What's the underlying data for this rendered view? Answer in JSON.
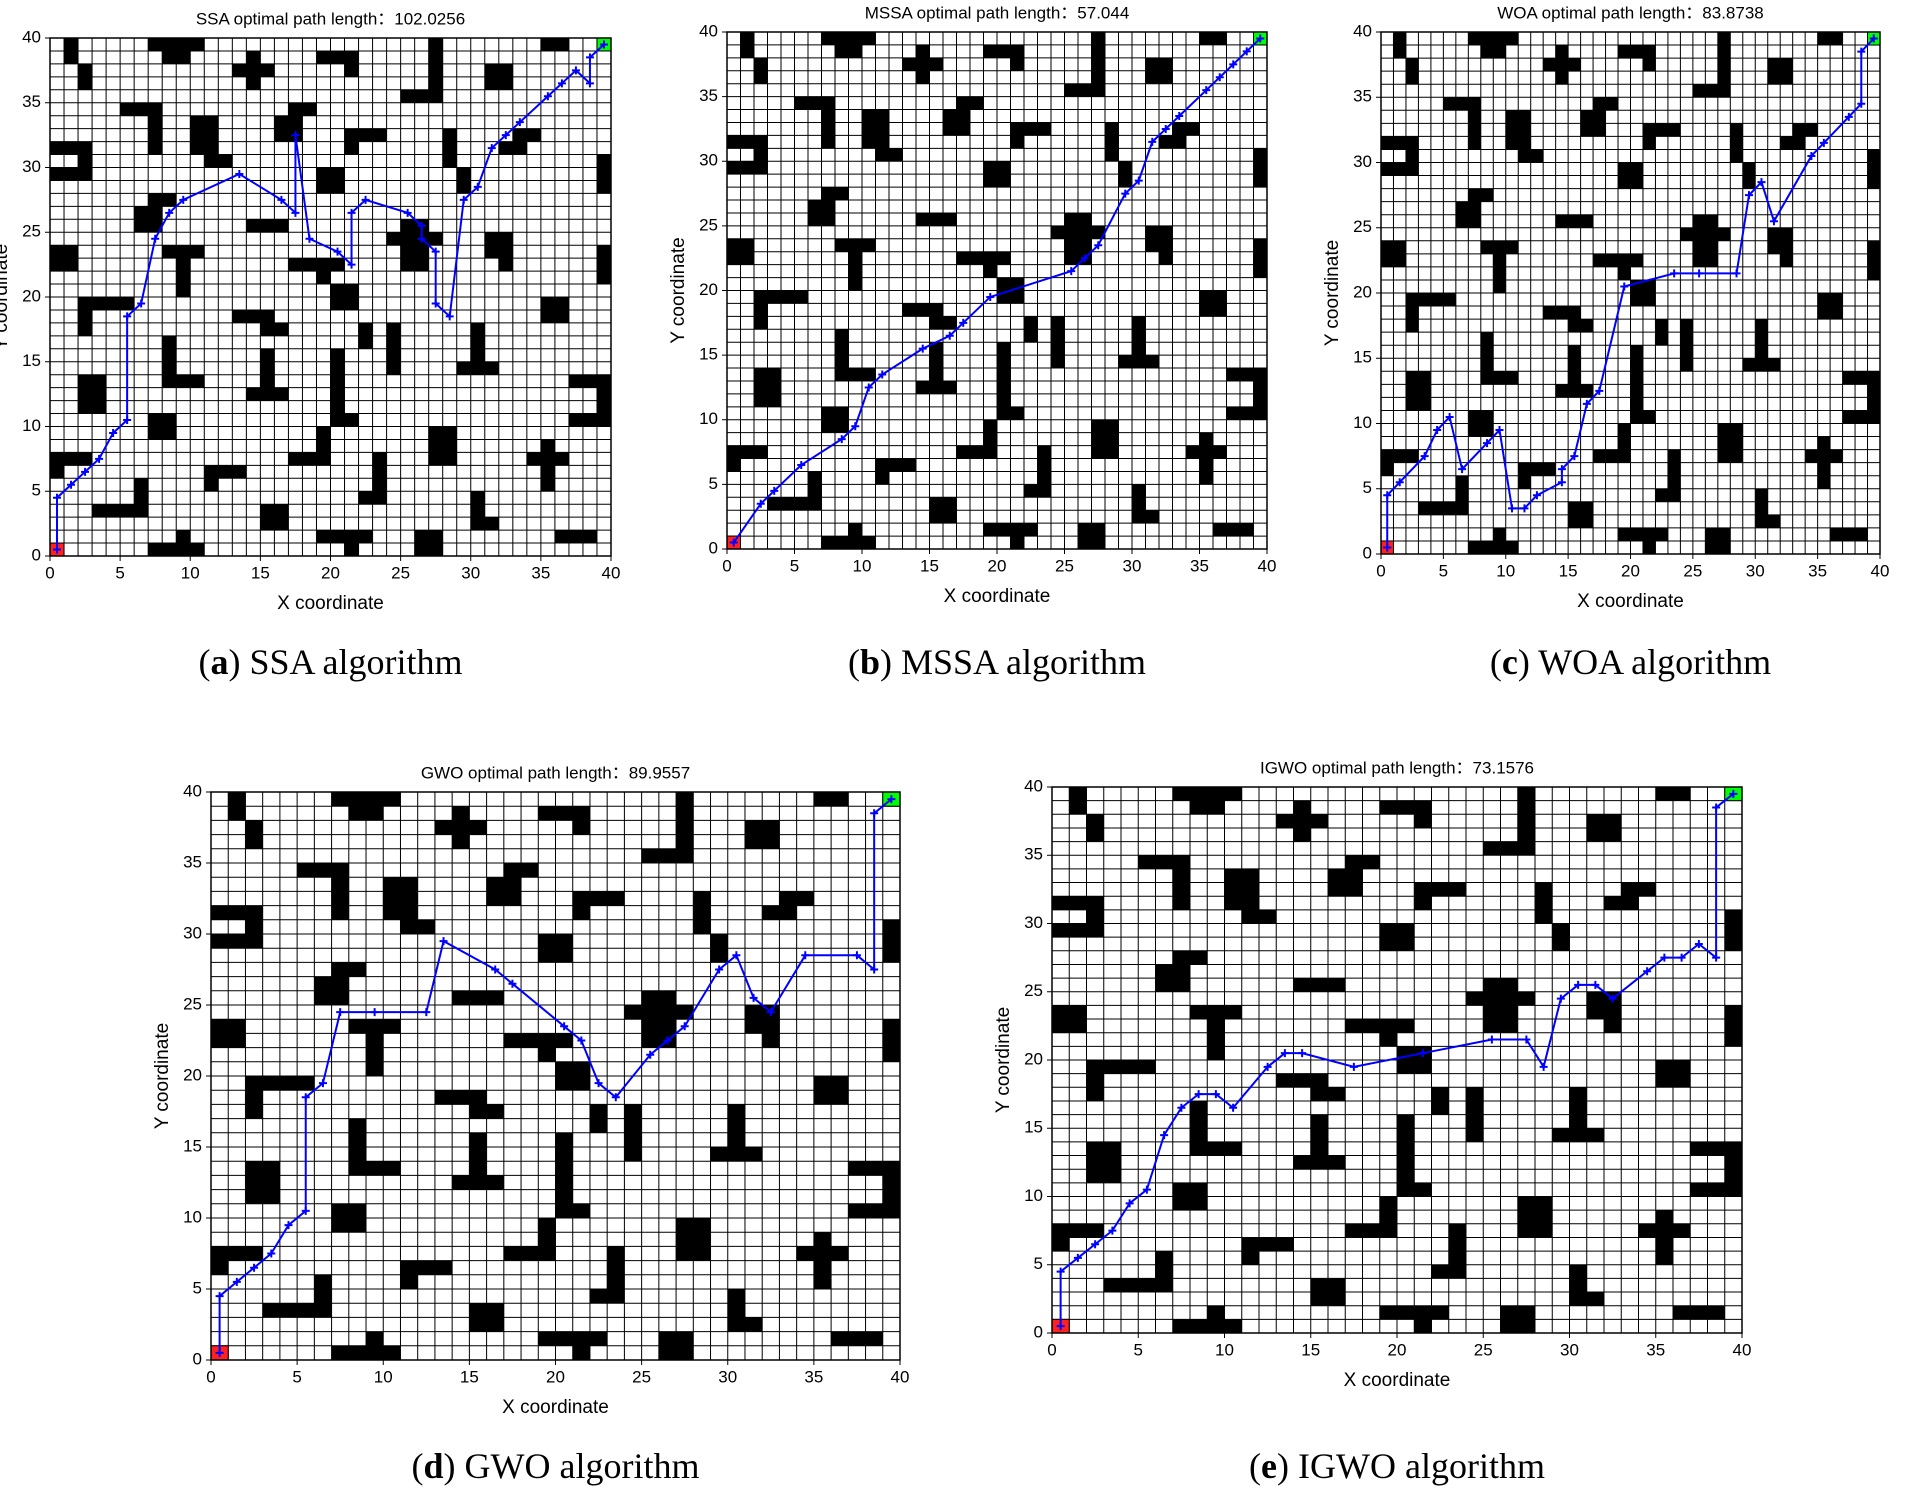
{
  "map": {
    "obstacles": [
      [
        1,
        38,
        1,
        2
      ],
      [
        2,
        36,
        1,
        2
      ],
      [
        7,
        39,
        4,
        1
      ],
      [
        8,
        38,
        2,
        1
      ],
      [
        13,
        37,
        3,
        1
      ],
      [
        14,
        36,
        1,
        3
      ],
      [
        19,
        38,
        3,
        1
      ],
      [
        21,
        37,
        1,
        1
      ],
      [
        25,
        35,
        3,
        1
      ],
      [
        27,
        35,
        1,
        5
      ],
      [
        31,
        36,
        2,
        2
      ],
      [
        35,
        39,
        2,
        1
      ],
      [
        5,
        34,
        3,
        1
      ],
      [
        7,
        31,
        1,
        4
      ],
      [
        0,
        31,
        3,
        1
      ],
      [
        0,
        29,
        3,
        1
      ],
      [
        2,
        29,
        1,
        3
      ],
      [
        10,
        31,
        2,
        3
      ],
      [
        11,
        30,
        2,
        1
      ],
      [
        17,
        34,
        2,
        1
      ],
      [
        16,
        32,
        2,
        2
      ],
      [
        21,
        32,
        3,
        1
      ],
      [
        21,
        31,
        1,
        1
      ],
      [
        32,
        31,
        2,
        1
      ],
      [
        33,
        32,
        2,
        1
      ],
      [
        28,
        30,
        1,
        3
      ],
      [
        29,
        28,
        1,
        2
      ],
      [
        19,
        28,
        2,
        2
      ],
      [
        39,
        28,
        1,
        3
      ],
      [
        7,
        27,
        2,
        1
      ],
      [
        6,
        25,
        2,
        2
      ],
      [
        0,
        22,
        2,
        2
      ],
      [
        8,
        23,
        3,
        1
      ],
      [
        9,
        20,
        1,
        4
      ],
      [
        14,
        25,
        3,
        1
      ],
      [
        17,
        22,
        4,
        1
      ],
      [
        19,
        21,
        1,
        1
      ],
      [
        25,
        22,
        2,
        4
      ],
      [
        24,
        24,
        4,
        1
      ],
      [
        31,
        23,
        2,
        2
      ],
      [
        32,
        22,
        1,
        1
      ],
      [
        39,
        21,
        1,
        3
      ],
      [
        2,
        19,
        4,
        1
      ],
      [
        2,
        17,
        1,
        3
      ],
      [
        13,
        18,
        3,
        1
      ],
      [
        15,
        17,
        2,
        1
      ],
      [
        20,
        19,
        2,
        2
      ],
      [
        35,
        18,
        2,
        2
      ],
      [
        22,
        16,
        1,
        2
      ],
      [
        8,
        13,
        1,
        4
      ],
      [
        9,
        13,
        2,
        1
      ],
      [
        14,
        12,
        3,
        1
      ],
      [
        15,
        13,
        1,
        3
      ],
      [
        20,
        10,
        2,
        1
      ],
      [
        20,
        11,
        1,
        5
      ],
      [
        24,
        14,
        1,
        4
      ],
      [
        29,
        14,
        3,
        1
      ],
      [
        30,
        15,
        1,
        3
      ],
      [
        37,
        10,
        3,
        1
      ],
      [
        39,
        10,
        1,
        4
      ],
      [
        37,
        13,
        3,
        1
      ],
      [
        2,
        11,
        2,
        3
      ],
      [
        7,
        9,
        2,
        2
      ],
      [
        27,
        7,
        2,
        3
      ],
      [
        17,
        7,
        3,
        1
      ],
      [
        19,
        8,
        1,
        2
      ],
      [
        0,
        6,
        1,
        2
      ],
      [
        0,
        7,
        3,
        1
      ],
      [
        11,
        6,
        3,
        1
      ],
      [
        11,
        5,
        1,
        1
      ],
      [
        22,
        4,
        2,
        1
      ],
      [
        23,
        5,
        1,
        3
      ],
      [
        34,
        7,
        3,
        1
      ],
      [
        35,
        5,
        1,
        4
      ],
      [
        3,
        3,
        4,
        1
      ],
      [
        6,
        4,
        1,
        2
      ],
      [
        15,
        2,
        2,
        2
      ],
      [
        30,
        2,
        1,
        3
      ],
      [
        31,
        2,
        1,
        1
      ],
      [
        7,
        0,
        4,
        1
      ],
      [
        9,
        1,
        1,
        1
      ],
      [
        19,
        1,
        4,
        1
      ],
      [
        21,
        0,
        1,
        1
      ],
      [
        26,
        0,
        2,
        2
      ],
      [
        36,
        1,
        3,
        1
      ]
    ],
    "start": [
      0.5,
      0.5
    ],
    "goal": [
      39.5,
      39.5
    ]
  },
  "chart_data": [
    {
      "type": "line",
      "title": "SSA optimal path length：102.0256",
      "x_label": "X coordinate",
      "y_label": "Y coordinate",
      "caption_letter": "a",
      "caption": "SSA algorithm",
      "xlim": [
        0,
        40
      ],
      "ylim": [
        0,
        40
      ],
      "xticks": [
        0,
        5,
        10,
        15,
        20,
        25,
        30,
        35,
        40
      ],
      "yticks": [
        0,
        5,
        10,
        15,
        20,
        25,
        30,
        35,
        40
      ],
      "series": [
        {
          "color": "#0000ff",
          "x": [
            0.5,
            0.5,
            1.5,
            2.5,
            3.5,
            4.5,
            5.5,
            5.5,
            6.5,
            7.5,
            8.5,
            9.5,
            13.5,
            16.5,
            17.5,
            17.5,
            18.5,
            20.5,
            21.5,
            21.5,
            22.5,
            25.5,
            26.5,
            26.5,
            27.5,
            27.5,
            28.5,
            29.5,
            30.5,
            31.5,
            32.5,
            33.5,
            35.5,
            36.5,
            37.5,
            38.5,
            38.5,
            39.5
          ],
          "y": [
            0.5,
            4.5,
            5.5,
            6.5,
            7.5,
            9.5,
            10.5,
            18.5,
            19.5,
            24.5,
            26.5,
            27.5,
            29.5,
            27.5,
            26.5,
            32.5,
            24.5,
            23.5,
            22.5,
            26.5,
            27.5,
            26.5,
            25.5,
            24.5,
            23.5,
            19.5,
            18.5,
            27.5,
            28.5,
            31.5,
            32.5,
            33.5,
            35.5,
            36.5,
            37.5,
            36.5,
            38.5,
            39.5
          ]
        }
      ]
    },
    {
      "type": "line",
      "title": "MSSA optimal path length：57.044",
      "x_label": "X coordinate",
      "y_label": "Y coordinate",
      "caption_letter": "b",
      "caption": "MSSA algorithm",
      "xlim": [
        0,
        40
      ],
      "ylim": [
        0,
        40
      ],
      "xticks": [
        0,
        5,
        10,
        15,
        20,
        25,
        30,
        35,
        40
      ],
      "yticks": [
        0,
        5,
        10,
        15,
        20,
        25,
        30,
        35,
        40
      ],
      "series": [
        {
          "color": "#0000ff",
          "x": [
            0.5,
            2.5,
            3.5,
            5.5,
            8.5,
            9.5,
            10.5,
            11.5,
            14.5,
            16.5,
            17.5,
            19.5,
            25.5,
            26.5,
            27.5,
            29.5,
            30.5,
            31.5,
            32.5,
            33.5,
            35.5,
            36.5,
            37.5,
            38.5,
            39.5
          ],
          "y": [
            0.5,
            3.5,
            4.5,
            6.5,
            8.5,
            9.5,
            12.5,
            13.5,
            15.5,
            16.5,
            17.5,
            19.5,
            21.5,
            22.5,
            23.5,
            27.5,
            28.5,
            31.5,
            32.5,
            33.5,
            35.5,
            36.5,
            37.5,
            38.5,
            39.5
          ]
        }
      ]
    },
    {
      "type": "line",
      "title": "WOA optimal path length：83.8738",
      "x_label": "X coordinate",
      "y_label": "Y coordinate",
      "caption_letter": "c",
      "caption": "WOA algorithm",
      "xlim": [
        0,
        40
      ],
      "ylim": [
        0,
        40
      ],
      "xticks": [
        0,
        5,
        10,
        15,
        20,
        25,
        30,
        35,
        40
      ],
      "yticks": [
        0,
        5,
        10,
        15,
        20,
        25,
        30,
        35,
        40
      ],
      "series": [
        {
          "color": "#0000ff",
          "x": [
            0.5,
            0.5,
            1.5,
            3.5,
            4.5,
            5.5,
            6.5,
            8.5,
            9.5,
            10.5,
            11.5,
            12.5,
            14.5,
            14.5,
            15.5,
            16.5,
            17.5,
            19.5,
            23.5,
            25.5,
            28.5,
            29.5,
            30.5,
            31.5,
            34.5,
            35.5,
            37.5,
            38.5,
            38.5,
            39.5
          ],
          "y": [
            0.5,
            4.5,
            5.5,
            7.5,
            9.5,
            10.5,
            6.5,
            8.5,
            9.5,
            3.5,
            3.5,
            4.5,
            5.5,
            6.5,
            7.5,
            11.5,
            12.5,
            20.5,
            21.5,
            21.5,
            21.5,
            27.5,
            28.5,
            25.5,
            30.5,
            31.5,
            33.5,
            34.5,
            38.5,
            39.5
          ]
        }
      ]
    },
    {
      "type": "line",
      "title": "GWO optimal path length：89.9557",
      "x_label": "X coordinate",
      "y_label": "Y coordinate",
      "caption_letter": "d",
      "caption": "GWO algorithm",
      "xlim": [
        0,
        40
      ],
      "ylim": [
        0,
        40
      ],
      "xticks": [
        0,
        5,
        10,
        15,
        20,
        25,
        30,
        35,
        40
      ],
      "yticks": [
        0,
        5,
        10,
        15,
        20,
        25,
        30,
        35,
        40
      ],
      "series": [
        {
          "color": "#0000ff",
          "x": [
            0.5,
            0.5,
            1.5,
            2.5,
            3.5,
            4.5,
            5.5,
            5.5,
            6.5,
            7.5,
            9.5,
            12.5,
            13.5,
            16.5,
            17.5,
            20.5,
            21.5,
            22.5,
            23.5,
            25.5,
            26.5,
            27.5,
            29.5,
            30.5,
            31.5,
            32.5,
            34.5,
            37.5,
            38.5,
            38.5,
            39.5
          ],
          "y": [
            0.5,
            4.5,
            5.5,
            6.5,
            7.5,
            9.5,
            10.5,
            18.5,
            19.5,
            24.5,
            24.5,
            24.5,
            29.5,
            27.5,
            26.5,
            23.5,
            22.5,
            19.5,
            18.5,
            21.5,
            22.5,
            23.5,
            27.5,
            28.5,
            25.5,
            24.5,
            28.5,
            28.5,
            27.5,
            38.5,
            39.5
          ]
        }
      ]
    },
    {
      "type": "line",
      "title": "IGWO optimal path length：73.1576",
      "x_label": "X coordinate",
      "y_label": "Y coordinate",
      "caption_letter": "e",
      "caption": "IGWO algorithm",
      "xlim": [
        0,
        40
      ],
      "ylim": [
        0,
        40
      ],
      "xticks": [
        0,
        5,
        10,
        15,
        20,
        25,
        30,
        35,
        40
      ],
      "yticks": [
        0,
        5,
        10,
        15,
        20,
        25,
        30,
        35,
        40
      ],
      "series": [
        {
          "color": "#0000ff",
          "x": [
            0.5,
            0.5,
            1.5,
            2.5,
            3.5,
            4.5,
            5.5,
            6.5,
            7.5,
            8.5,
            9.5,
            10.5,
            12.5,
            13.5,
            14.5,
            17.5,
            21.5,
            25.5,
            27.5,
            28.5,
            29.5,
            30.5,
            31.5,
            32.5,
            34.5,
            35.5,
            36.5,
            37.5,
            38.5,
            38.5,
            39.5
          ],
          "y": [
            0.5,
            4.5,
            5.5,
            6.5,
            7.5,
            9.5,
            10.5,
            14.5,
            16.5,
            17.5,
            17.5,
            16.5,
            19.5,
            20.5,
            20.5,
            19.5,
            20.5,
            21.5,
            21.5,
            19.5,
            24.5,
            25.5,
            25.5,
            24.5,
            26.5,
            27.5,
            27.5,
            28.5,
            27.5,
            38.5,
            39.5
          ]
        }
      ]
    }
  ]
}
